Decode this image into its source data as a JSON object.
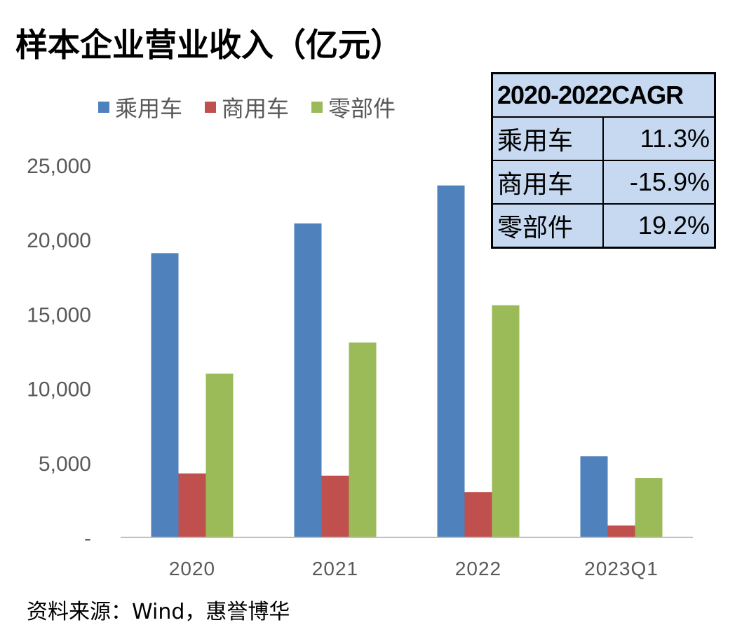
{
  "title": "样本企业营业收入（亿元）",
  "legend": [
    "乘用车",
    "商用车",
    "零部件"
  ],
  "colors": {
    "乘用车": "#4f81bd",
    "商用车": "#c0504d",
    "零部件": "#9bbb59",
    "axis_text": "#595959",
    "axis_line": "#bfbfbf"
  },
  "cagr_table": {
    "header": "2020-2022CAGR",
    "rows": [
      {
        "label": "乘用车",
        "value": "11.3%"
      },
      {
        "label": "商用车",
        "value": "-15.9%"
      },
      {
        "label": "零部件",
        "value": "19.2%"
      }
    ]
  },
  "source": "资料来源：Wind，惠誉博华",
  "chart_data": {
    "type": "bar",
    "categories": [
      "2020",
      "2021",
      "2022",
      "2023Q1"
    ],
    "series": [
      {
        "name": "乘用车",
        "values": [
          19100,
          21100,
          23650,
          5450
        ]
      },
      {
        "name": "商用车",
        "values": [
          4300,
          4150,
          3050,
          800
        ]
      },
      {
        "name": "零部件",
        "values": [
          11000,
          13100,
          15600,
          4000
        ]
      }
    ],
    "ylim": [
      0,
      25000
    ],
    "yticks": [
      "-",
      "5,000",
      "10,000",
      "15,000",
      "20,000",
      "25,000"
    ],
    "ytick_values": [
      0,
      5000,
      10000,
      15000,
      20000,
      25000
    ],
    "grid": false,
    "legend_position": "top-left"
  }
}
